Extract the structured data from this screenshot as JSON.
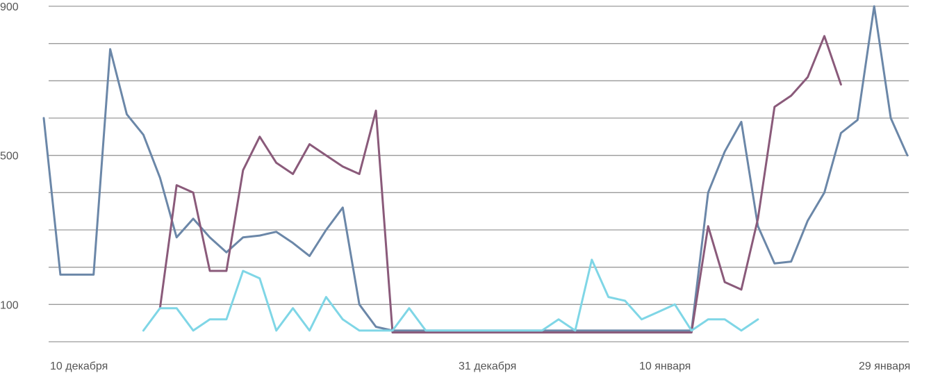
{
  "chart_data": {
    "type": "line",
    "ylim": [
      40,
      900
    ],
    "grid": true,
    "y_ticks": [
      "900",
      "500",
      "100"
    ],
    "y_tick_values": [
      900,
      500,
      100
    ],
    "gridlines": [
      900,
      800,
      700,
      600,
      500,
      400,
      300,
      200,
      100,
      0
    ],
    "x_ticks": [
      "10 декабря",
      "31 декабря",
      "10 января",
      "29 января"
    ],
    "series": [
      {
        "color": "#6b87a8",
        "values": [
          600,
          180,
          180,
          180,
          785,
          610,
          555,
          440,
          280,
          330,
          280,
          240,
          280,
          285,
          295,
          265,
          230,
          300,
          360,
          100,
          40,
          30,
          30,
          30,
          30,
          30,
          30,
          30,
          30,
          30,
          30,
          30,
          30,
          30,
          30,
          30,
          30,
          30,
          30,
          30,
          400,
          510,
          590,
          310,
          210,
          215,
          325,
          400,
          560,
          595,
          900,
          600,
          500
        ]
      },
      {
        "color": "#8a5a7a",
        "values": [
          null,
          null,
          null,
          null,
          null,
          null,
          null,
          90,
          420,
          400,
          190,
          190,
          460,
          550,
          480,
          450,
          530,
          500,
          470,
          450,
          620,
          25,
          25,
          25,
          25,
          25,
          25,
          25,
          25,
          25,
          25,
          25,
          25,
          25,
          25,
          25,
          25,
          25,
          25,
          25,
          310,
          160,
          140,
          330,
          630,
          660,
          710,
          820,
          690
        ]
      },
      {
        "color": "#7fd6e6",
        "values": [
          null,
          null,
          null,
          null,
          null,
          null,
          30,
          90,
          90,
          30,
          60,
          60,
          190,
          170,
          30,
          90,
          30,
          120,
          60,
          30,
          30,
          30,
          90,
          30,
          30,
          30,
          30,
          30,
          30,
          30,
          30,
          60,
          30,
          220,
          120,
          110,
          60,
          80,
          100,
          30,
          60,
          60,
          30,
          60
        ]
      }
    ]
  }
}
